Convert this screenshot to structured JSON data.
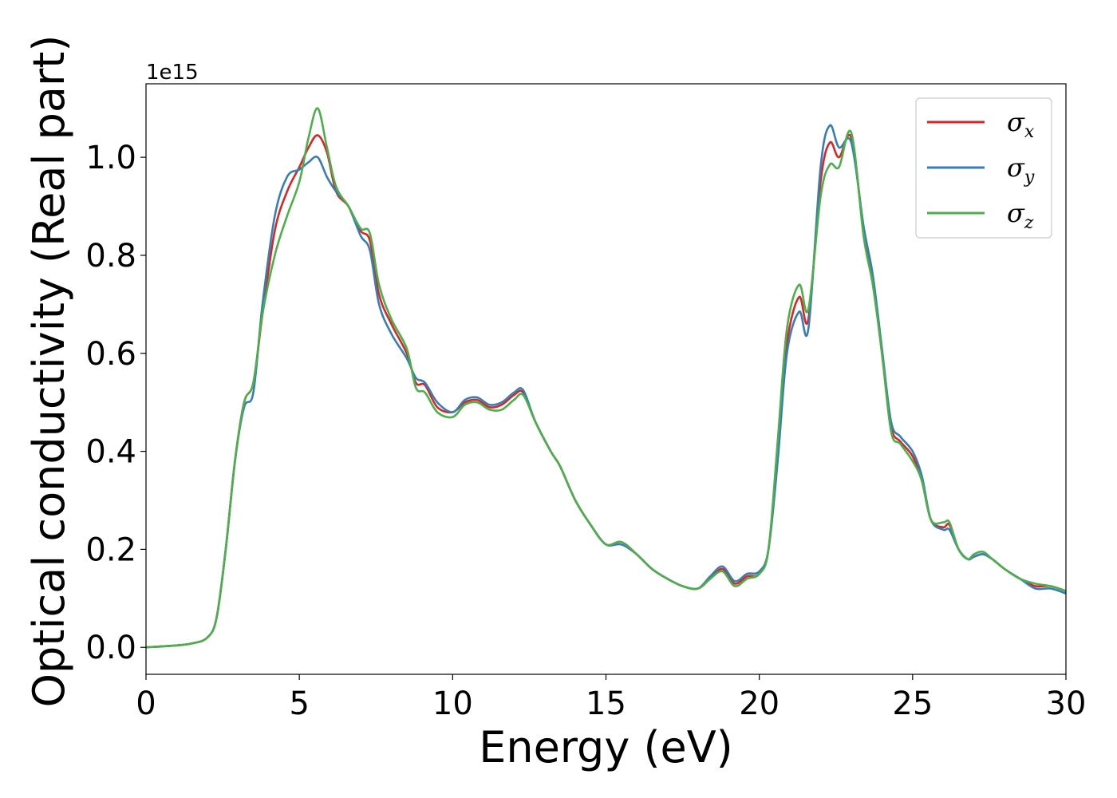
{
  "chart_data": {
    "type": "line",
    "title": "",
    "xlabel": "Energy (eV)",
    "ylabel": "Optical conductivity (Real part)",
    "y_offset_label": "1e15",
    "xlim": [
      0,
      30
    ],
    "ylim": [
      -0.055,
      1.15
    ],
    "x_ticks": [
      0,
      5,
      10,
      15,
      20,
      25,
      30
    ],
    "x_tick_labels": [
      "0",
      "5",
      "10",
      "15",
      "20",
      "25",
      "30"
    ],
    "y_ticks": [
      0.0,
      0.2,
      0.4,
      0.6,
      0.8,
      1.0
    ],
    "y_tick_labels": [
      "0.0",
      "0.2",
      "0.4",
      "0.6",
      "0.8",
      "1.0"
    ],
    "grid": false,
    "legend_position": "top-right",
    "series": [
      {
        "name": "σ",
        "subscript": "x",
        "color": "#d62728",
        "x": [
          0,
          1,
          1.5,
          2,
          2.3,
          2.6,
          2.9,
          3.2,
          3.5,
          3.8,
          4.2,
          4.6,
          5.0,
          5.3,
          5.6,
          5.9,
          6.2,
          6.6,
          7.0,
          7.3,
          7.6,
          8.0,
          8.5,
          8.8,
          9.1,
          9.5,
          10.0,
          10.4,
          10.8,
          11.2,
          11.6,
          12.0,
          12.3,
          12.7,
          13.2,
          13.5,
          14.0,
          14.5,
          15.0,
          15.5,
          16.0,
          16.5,
          17.0,
          17.5,
          18.0,
          18.4,
          18.8,
          19.2,
          19.6,
          20.0,
          20.3,
          20.6,
          20.9,
          21.3,
          21.6,
          22.0,
          22.3,
          22.6,
          23.0,
          23.4,
          23.7,
          24.0,
          24.3,
          24.6,
          25.0,
          25.3,
          25.6,
          26.0,
          26.2,
          26.5,
          26.8,
          27.0,
          27.3,
          27.6,
          28.0,
          28.5,
          29.0,
          29.5,
          30.0
        ],
        "y": [
          0.0,
          0.004,
          0.008,
          0.02,
          0.06,
          0.2,
          0.38,
          0.5,
          0.54,
          0.68,
          0.85,
          0.93,
          0.98,
          1.02,
          1.045,
          1.01,
          0.93,
          0.9,
          0.85,
          0.83,
          0.72,
          0.66,
          0.6,
          0.54,
          0.535,
          0.49,
          0.48,
          0.5,
          0.505,
          0.49,
          0.495,
          0.515,
          0.52,
          0.46,
          0.4,
          0.37,
          0.3,
          0.25,
          0.21,
          0.215,
          0.19,
          0.16,
          0.14,
          0.125,
          0.12,
          0.14,
          0.16,
          0.13,
          0.145,
          0.15,
          0.2,
          0.4,
          0.62,
          0.715,
          0.67,
          0.95,
          1.03,
          1.0,
          1.04,
          0.85,
          0.75,
          0.6,
          0.45,
          0.42,
          0.39,
          0.34,
          0.26,
          0.245,
          0.25,
          0.2,
          0.18,
          0.185,
          0.19,
          0.18,
          0.16,
          0.14,
          0.125,
          0.125,
          0.115
        ]
      },
      {
        "name": "σ",
        "subscript": "y",
        "color": "#377eb8",
        "x": [
          0,
          1,
          1.5,
          2,
          2.3,
          2.6,
          2.9,
          3.2,
          3.5,
          3.8,
          4.2,
          4.6,
          5.0,
          5.3,
          5.6,
          5.9,
          6.2,
          6.6,
          7.0,
          7.3,
          7.6,
          8.0,
          8.5,
          8.8,
          9.1,
          9.5,
          10.0,
          10.4,
          10.8,
          11.2,
          11.6,
          12.0,
          12.3,
          12.7,
          13.2,
          13.5,
          14.0,
          14.5,
          15.0,
          15.5,
          16.0,
          16.5,
          17.0,
          17.5,
          18.0,
          18.4,
          18.8,
          19.2,
          19.6,
          20.0,
          20.3,
          20.6,
          20.9,
          21.3,
          21.6,
          22.0,
          22.3,
          22.6,
          23.0,
          23.4,
          23.7,
          24.0,
          24.3,
          24.6,
          25.0,
          25.3,
          25.6,
          26.0,
          26.2,
          26.5,
          26.8,
          27.0,
          27.3,
          27.6,
          28.0,
          28.5,
          29.0,
          29.5,
          30.0
        ],
        "y": [
          0.0,
          0.004,
          0.008,
          0.02,
          0.06,
          0.2,
          0.38,
          0.49,
          0.52,
          0.7,
          0.88,
          0.96,
          0.975,
          0.99,
          1.0,
          0.96,
          0.93,
          0.9,
          0.84,
          0.81,
          0.7,
          0.64,
          0.59,
          0.55,
          0.54,
          0.5,
          0.48,
          0.505,
          0.51,
          0.495,
          0.5,
          0.52,
          0.525,
          0.46,
          0.4,
          0.37,
          0.3,
          0.25,
          0.21,
          0.21,
          0.19,
          0.16,
          0.14,
          0.125,
          0.12,
          0.145,
          0.165,
          0.135,
          0.15,
          0.155,
          0.2,
          0.38,
          0.6,
          0.685,
          0.65,
          0.98,
          1.065,
          1.02,
          1.03,
          0.86,
          0.76,
          0.61,
          0.46,
          0.43,
          0.4,
          0.35,
          0.26,
          0.24,
          0.24,
          0.2,
          0.18,
          0.185,
          0.19,
          0.18,
          0.16,
          0.14,
          0.12,
          0.12,
          0.11
        ]
      },
      {
        "name": "σ",
        "subscript": "z",
        "color": "#4daf4a",
        "x": [
          0,
          1,
          1.5,
          2,
          2.3,
          2.6,
          2.9,
          3.2,
          3.5,
          3.8,
          4.2,
          4.6,
          5.0,
          5.3,
          5.6,
          5.9,
          6.2,
          6.6,
          7.0,
          7.3,
          7.6,
          8.0,
          8.5,
          8.8,
          9.1,
          9.5,
          10.0,
          10.4,
          10.8,
          11.2,
          11.6,
          12.0,
          12.3,
          12.7,
          13.2,
          13.5,
          14.0,
          14.5,
          15.0,
          15.5,
          16.0,
          16.5,
          17.0,
          17.5,
          18.0,
          18.4,
          18.8,
          19.2,
          19.6,
          20.0,
          20.3,
          20.6,
          20.9,
          21.3,
          21.6,
          22.0,
          22.3,
          22.6,
          23.0,
          23.4,
          23.7,
          24.0,
          24.3,
          24.6,
          25.0,
          25.3,
          25.6,
          26.0,
          26.2,
          26.5,
          26.8,
          27.0,
          27.3,
          27.6,
          28.0,
          28.5,
          29.0,
          29.5,
          30.0
        ],
        "y": [
          0.0,
          0.004,
          0.008,
          0.02,
          0.06,
          0.2,
          0.38,
          0.5,
          0.54,
          0.68,
          0.8,
          0.88,
          0.95,
          1.04,
          1.1,
          1.02,
          0.94,
          0.9,
          0.855,
          0.845,
          0.74,
          0.67,
          0.61,
          0.53,
          0.52,
          0.48,
          0.47,
          0.495,
          0.5,
          0.485,
          0.485,
          0.505,
          0.515,
          0.46,
          0.4,
          0.37,
          0.3,
          0.25,
          0.21,
          0.215,
          0.19,
          0.16,
          0.14,
          0.125,
          0.12,
          0.14,
          0.155,
          0.125,
          0.14,
          0.15,
          0.2,
          0.42,
          0.65,
          0.74,
          0.69,
          0.92,
          0.985,
          0.98,
          1.05,
          0.84,
          0.74,
          0.6,
          0.44,
          0.415,
          0.38,
          0.34,
          0.26,
          0.255,
          0.255,
          0.2,
          0.18,
          0.19,
          0.195,
          0.18,
          0.16,
          0.14,
          0.13,
          0.125,
          0.115
        ]
      }
    ]
  }
}
